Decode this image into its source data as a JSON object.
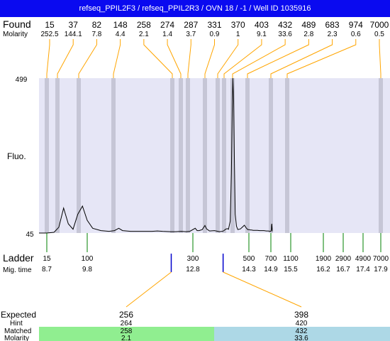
{
  "title": "refseq_PPIL2F3 / refseq_PPIL2R3 / OVN 18 / -1 / Well ID 1035916",
  "labels": {
    "found": "Found",
    "molarity": "Molarity",
    "fluo": "Fluo.",
    "ladder": "Ladder",
    "mig_time": "Mig. time",
    "expected": "Expected",
    "hint": "Hint",
    "matched": "Matched",
    "molarity_bottom": "Molarity"
  },
  "colors": {
    "title_bg": "#0a0af0",
    "plot_bg": "#e6e6f6",
    "peak_band": "#c6c6d6",
    "connector": "#ffa500",
    "ladder_tick": "#008000",
    "expected_marker": "#0000cc",
    "matched_green": "#90ee90",
    "matched_blue": "#add8e6"
  },
  "chart_data": {
    "type": "line",
    "y_axis": {
      "top_label": "499",
      "bottom_label": "45",
      "ylim": [
        45,
        499
      ]
    },
    "x_axis": {
      "unit": "bp"
    },
    "found_peaks": [
      {
        "size": "15",
        "molarity": "252.5",
        "bp": 15
      },
      {
        "size": "37",
        "molarity": "144.1",
        "bp": 37
      },
      {
        "size": "82",
        "molarity": "7.8",
        "bp": 82
      },
      {
        "size": "148",
        "molarity": "4.4",
        "bp": 148
      },
      {
        "size": "258",
        "molarity": "2.1",
        "bp": 258
      },
      {
        "size": "274",
        "molarity": "1.4",
        "bp": 274
      },
      {
        "size": "287",
        "molarity": "3.7",
        "bp": 287
      },
      {
        "size": "331",
        "molarity": "0.9",
        "bp": 331
      },
      {
        "size": "370",
        "molarity": "1",
        "bp": 370
      },
      {
        "size": "403",
        "molarity": "9.1",
        "bp": 403
      },
      {
        "size": "432",
        "molarity": "33.6",
        "bp": 432
      },
      {
        "size": "489",
        "molarity": "2.8",
        "bp": 489
      },
      {
        "size": "683",
        "molarity": "2.3",
        "bp": 683
      },
      {
        "size": "974",
        "molarity": "0.6",
        "bp": 974
      },
      {
        "size": "7000",
        "molarity": "0.5",
        "bp": 7000
      }
    ],
    "ladder": [
      {
        "size": "15",
        "time": "8.7"
      },
      {
        "size": "100",
        "time": "9.8"
      },
      {
        "size": "300",
        "time": "12.8"
      },
      {
        "size": "500",
        "time": "14.3"
      },
      {
        "size": "700",
        "time": "14.9"
      },
      {
        "size": "1100",
        "time": "15.5"
      },
      {
        "size": "1900",
        "time": "16.2"
      },
      {
        "size": "2900",
        "time": "16.7"
      },
      {
        "size": "4900",
        "time": "17.4"
      },
      {
        "size": "7000",
        "time": "17.9"
      }
    ],
    "expected": [
      {
        "expected": "256",
        "hint": "264",
        "matched": "258",
        "molarity": "2.1"
      },
      {
        "expected": "398",
        "hint": "420",
        "matched": "432",
        "molarity": "33.6"
      }
    ],
    "trace": [
      [
        0,
        45
      ],
      [
        15,
        45
      ],
      [
        30,
        47
      ],
      [
        40,
        62
      ],
      [
        50,
        118
      ],
      [
        60,
        72
      ],
      [
        70,
        56
      ],
      [
        80,
        100
      ],
      [
        90,
        124
      ],
      [
        100,
        82
      ],
      [
        110,
        59
      ],
      [
        125,
        52
      ],
      [
        140,
        50
      ],
      [
        150,
        52
      ],
      [
        158,
        59
      ],
      [
        165,
        52
      ],
      [
        180,
        50
      ],
      [
        200,
        50
      ],
      [
        220,
        50
      ],
      [
        230,
        51
      ],
      [
        240,
        50
      ],
      [
        255,
        49
      ],
      [
        265,
        49
      ],
      [
        275,
        50
      ],
      [
        283,
        49
      ],
      [
        292,
        50
      ],
      [
        306,
        59
      ],
      [
        311,
        52
      ],
      [
        316,
        52
      ],
      [
        324,
        55
      ],
      [
        331,
        67
      ],
      [
        336,
        57
      ],
      [
        345,
        51
      ],
      [
        360,
        52
      ],
      [
        380,
        49
      ],
      [
        392,
        50
      ],
      [
        400,
        51
      ],
      [
        408,
        56
      ],
      [
        414,
        58
      ],
      [
        418,
        56
      ],
      [
        424,
        80
      ],
      [
        428,
        220
      ],
      [
        431,
        420
      ],
      [
        433,
        499
      ],
      [
        436,
        430
      ],
      [
        439,
        250
      ],
      [
        442,
        100
      ],
      [
        447,
        65
      ],
      [
        452,
        55
      ],
      [
        462,
        57
      ],
      [
        472,
        64
      ],
      [
        477,
        68
      ],
      [
        484,
        60
      ],
      [
        492,
        55
      ],
      [
        502,
        55
      ],
      [
        512,
        54
      ],
      [
        522,
        54
      ],
      [
        536,
        53
      ],
      [
        550,
        53
      ],
      [
        570,
        53
      ],
      [
        590,
        52
      ],
      [
        610,
        52
      ],
      [
        625,
        52
      ],
      [
        645,
        51
      ],
      [
        660,
        51
      ],
      [
        680,
        50
      ],
      [
        700,
        50
      ],
      [
        708,
        55
      ],
      [
        712,
        68
      ],
      [
        716,
        72
      ],
      [
        720,
        60
      ],
      [
        724,
        50
      ]
    ]
  }
}
